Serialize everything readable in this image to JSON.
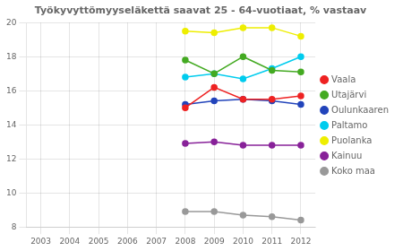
{
  "chart_data": {
    "type": "line",
    "title": "Työkyvyttömyyseläkettä saavat 25 - 64-vuotiaat, % vastaav",
    "x": [
      2003,
      2004,
      2005,
      2006,
      2007,
      2008,
      2009,
      2010,
      2011,
      2012
    ],
    "series": [
      {
        "name": "Vaala",
        "color": "#ee2222",
        "marker": "circle",
        "values": [
          null,
          null,
          null,
          null,
          null,
          15.0,
          16.2,
          15.5,
          15.5,
          15.7
        ]
      },
      {
        "name": "Utajärvi",
        "color": "#44aa22",
        "marker": "circle",
        "values": [
          null,
          null,
          null,
          null,
          null,
          17.8,
          17.0,
          18.0,
          17.2,
          17.1
        ]
      },
      {
        "name": "Oulunkaaren",
        "color": "#2244bb",
        "marker": "circle",
        "values": [
          null,
          null,
          null,
          null,
          null,
          15.2,
          15.4,
          15.5,
          15.4,
          15.2
        ]
      },
      {
        "name": "Paltamo",
        "color": "#00ccee",
        "marker": "circle",
        "values": [
          null,
          null,
          null,
          null,
          null,
          16.8,
          17.0,
          16.7,
          17.3,
          18.0
        ]
      },
      {
        "name": "Puolanka",
        "color": "#eeee00",
        "marker": "circle",
        "values": [
          null,
          null,
          null,
          null,
          null,
          19.5,
          19.4,
          19.7,
          19.7,
          19.2
        ]
      },
      {
        "name": "Kainuu",
        "color": "#882299",
        "marker": "circle",
        "values": [
          null,
          null,
          null,
          null,
          null,
          12.9,
          13.0,
          12.8,
          12.8,
          12.8
        ]
      },
      {
        "name": "Koko maa",
        "color": "#999999",
        "marker": "circle",
        "values": [
          null,
          null,
          null,
          null,
          null,
          8.9,
          8.9,
          8.7,
          8.6,
          8.4
        ]
      }
    ],
    "xlim": [
      2002.5,
      2012.5
    ],
    "ylim": [
      8,
      20
    ],
    "xticks": [
      2003,
      2004,
      2005,
      2006,
      2007,
      2008,
      2009,
      2010,
      2011,
      2012
    ],
    "yticks": [
      8,
      10,
      12,
      14,
      16,
      18,
      20
    ],
    "grid": true,
    "legend": "right"
  }
}
